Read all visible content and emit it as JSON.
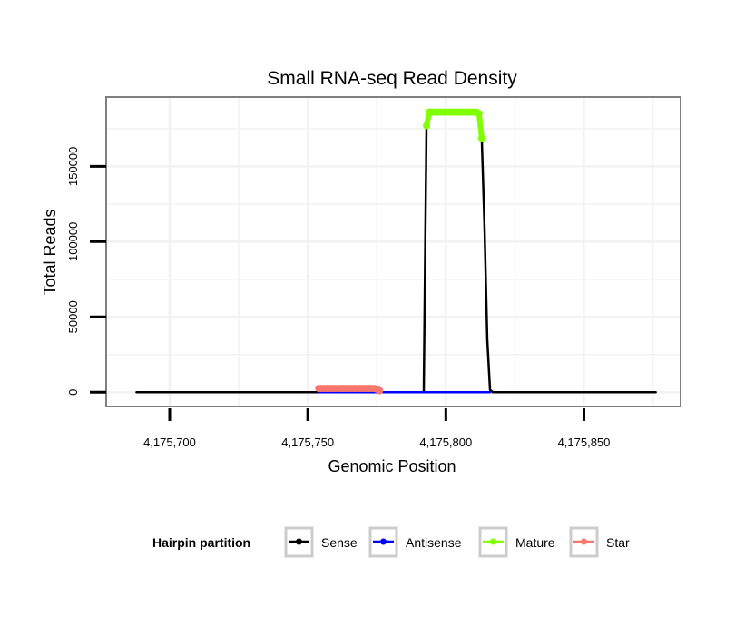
{
  "chart_data": {
    "type": "line",
    "title": "Small RNA-seq Read Density",
    "xlabel": "Genomic Position",
    "ylabel": "Total Reads",
    "xlim": [
      4175677,
      4175885
    ],
    "ylim": [
      -9500,
      196000
    ],
    "x_ticks": [
      4175700,
      4175750,
      4175800,
      4175850
    ],
    "x_tick_labels": [
      "4,175,700",
      "4,175,750",
      "4,175,800",
      "4,175,850"
    ],
    "y_ticks": [
      0,
      50000,
      100000,
      150000
    ],
    "y_tick_labels": [
      "0",
      "50000",
      "100000",
      "150000"
    ],
    "grid": true,
    "legend": {
      "title": "Hairpin partition",
      "placement": "bottom",
      "entries": [
        "Sense",
        "Antisense",
        "Mature",
        "Star"
      ]
    },
    "series": [
      {
        "name": "Sense",
        "color": "#000000",
        "markers": false,
        "points": [
          [
            4175688,
            0
          ],
          [
            4175792,
            0
          ],
          [
            4175793,
            177000
          ],
          [
            4175794,
            186000
          ],
          [
            4175812,
            186000
          ],
          [
            4175813,
            168600
          ],
          [
            4175814,
            110000
          ],
          [
            4175815,
            35000
          ],
          [
            4175816,
            1500
          ],
          [
            4175817,
            0
          ],
          [
            4175876,
            0
          ]
        ]
      },
      {
        "name": "Antisense",
        "color": "#0000FF",
        "markers": false,
        "points": [
          [
            4175754,
            0
          ],
          [
            4175776,
            0
          ],
          [
            4175792,
            0
          ],
          [
            4175816,
            0
          ]
        ]
      },
      {
        "name": "Mature",
        "color": "#7FFF00",
        "markers": true,
        "points": [
          [
            4175793,
            177000
          ],
          [
            4175794,
            186000
          ],
          [
            4175795,
            186000
          ],
          [
            4175796,
            186000
          ],
          [
            4175797,
            186000
          ],
          [
            4175798,
            186000
          ],
          [
            4175799,
            186000
          ],
          [
            4175800,
            186000
          ],
          [
            4175801,
            186000
          ],
          [
            4175802,
            186000
          ],
          [
            4175803,
            186000
          ],
          [
            4175804,
            186000
          ],
          [
            4175805,
            186000
          ],
          [
            4175806,
            186000
          ],
          [
            4175807,
            186000
          ],
          [
            4175808,
            186000
          ],
          [
            4175809,
            186000
          ],
          [
            4175810,
            186000
          ],
          [
            4175811,
            186000
          ],
          [
            4175812,
            185000
          ],
          [
            4175813,
            168600
          ]
        ]
      },
      {
        "name": "Star",
        "color": "#F8766D",
        "markers": true,
        "points": [
          [
            4175754,
            2500
          ],
          [
            4175755,
            2500
          ],
          [
            4175756,
            2500
          ],
          [
            4175757,
            2500
          ],
          [
            4175758,
            2500
          ],
          [
            4175759,
            2500
          ],
          [
            4175760,
            2500
          ],
          [
            4175761,
            2500
          ],
          [
            4175762,
            2500
          ],
          [
            4175763,
            2500
          ],
          [
            4175764,
            2500
          ],
          [
            4175765,
            2500
          ],
          [
            4175766,
            2500
          ],
          [
            4175767,
            2500
          ],
          [
            4175768,
            2500
          ],
          [
            4175769,
            2500
          ],
          [
            4175770,
            2500
          ],
          [
            4175771,
            2500
          ],
          [
            4175772,
            2500
          ],
          [
            4175773,
            2500
          ],
          [
            4175774,
            2500
          ],
          [
            4175775,
            2000
          ],
          [
            4175776,
            1000
          ]
        ]
      }
    ]
  }
}
